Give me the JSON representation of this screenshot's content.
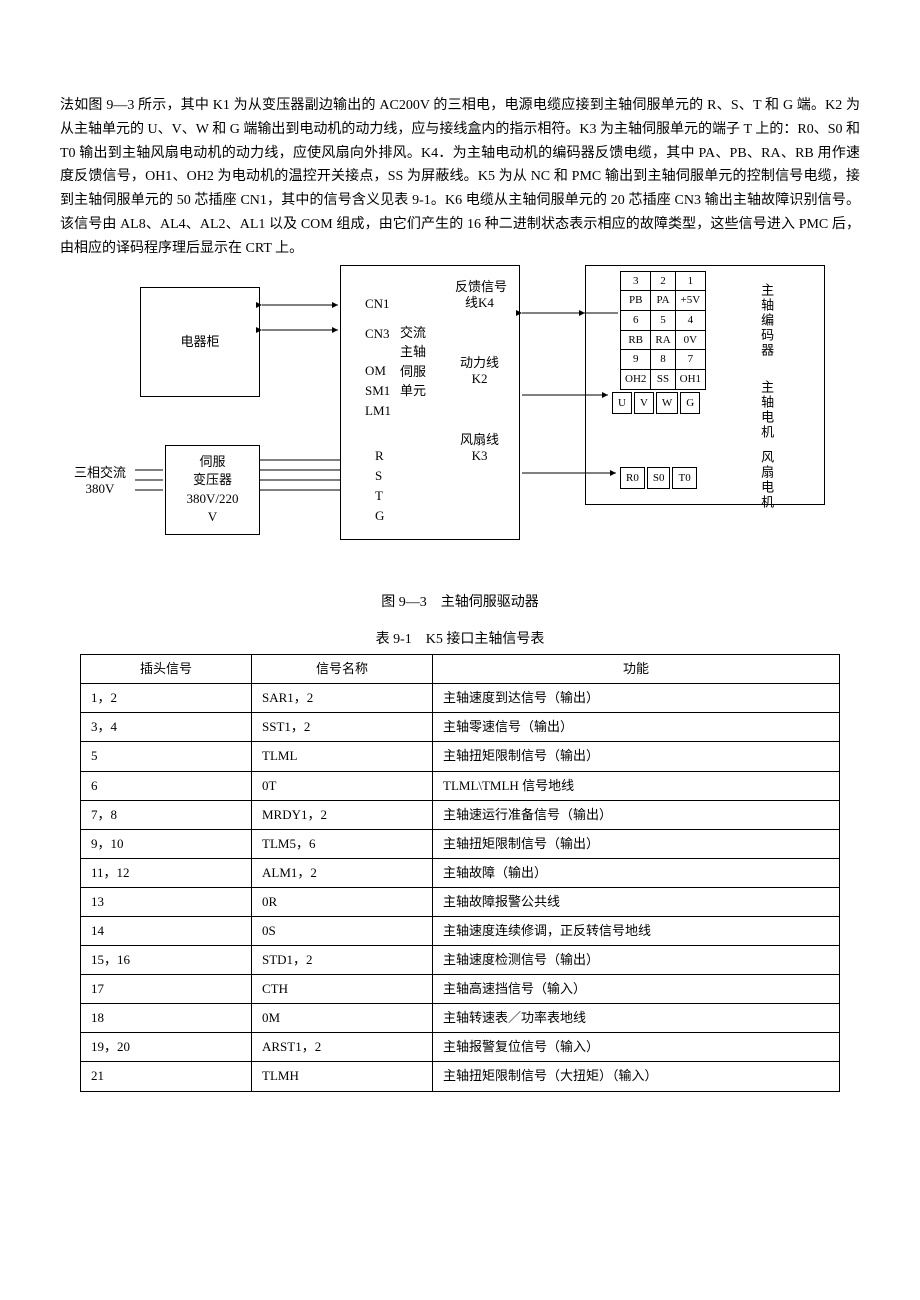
{
  "paragraph": "法如图 9—3 所示，其中 K1 为从变压器副边输出的 AC200V 的三相电，电源电缆应接到主轴伺服单元的 R、S、T 和 G 端。K2 为从主轴单元的 U、V、W 和 G 端输出到电动机的动力线，应与接线盒内的指示相符。K3 为主轴伺服单元的端子 T 上的：R0、S0 和 T0 输出到主轴风扇电动机的动力线，应使风扇向外排风。K4．为主轴电动机的编码器反馈电缆，其中 PA、PB、RA、RB 用作速度反馈信号，OH1、OH2 为电动机的温控开关接点，SS 为屏蔽线。K5 为从 NC 和 PMC 输出到主轴伺服单元的控制信号电缆，接到主轴伺服单元的 50 芯插座 CN1，其中的信号含义见表 9-1。K6 电缆从主轴伺服单元的 20 芯插座 CN3 输出主轴故障识别信号。该信号由 AL8、AL4、AL2、AL1 以及 COM 组成，由它们产生的 16 种二进制状态表示相应的故障类型，这些信号进入 PMC 后，由相应的译码程序理后显示在 CRT 上。",
  "figure_caption": "图 9—3　主轴伺服驱动器",
  "table_caption": "表 9-1　K5 接口主轴信号表",
  "diagram": {
    "cabinet": "电器柜",
    "three_phase_a": "三相交流",
    "three_phase_b": "380V",
    "transformer_a": "伺服",
    "transformer_b": "变压器",
    "transformer_c": "380V/220",
    "transformer_d": "V",
    "cn1": "CN1",
    "cn3": "CN3",
    "om": "OM",
    "sm1": "SM1",
    "lm1": "LM1",
    "rstg_r": "R",
    "rstg_s": "S",
    "rstg_t": "T",
    "rstg_g": "G",
    "servo_unit_a": "交流",
    "servo_unit_b": "主轴",
    "servo_unit_c": "伺服",
    "servo_unit_d": "单元",
    "feedback_a": "反馈信号",
    "feedback_b": "线K4",
    "power_line_a": "动力线",
    "power_line_b": "K2",
    "fan_line_a": "风扇线",
    "fan_line_b": "K3",
    "encoder_label": "主轴编码器",
    "motor_label": "主轴电机",
    "fan_motor_label": "风扇电机",
    "enc_r1": [
      "3",
      "2",
      "1"
    ],
    "enc_r2": [
      "PB",
      "PA",
      "+5V"
    ],
    "enc_r3": [
      "6",
      "5",
      "4"
    ],
    "enc_r4": [
      "RB",
      "RA",
      "0V"
    ],
    "enc_r5": [
      "9",
      "8",
      "7"
    ],
    "enc_r6": [
      "OH2",
      "SS",
      "OH1"
    ],
    "motor_pins": [
      "U",
      "V",
      "W",
      "G"
    ],
    "fan_pins": [
      "R0",
      "S0",
      "T0"
    ]
  },
  "table": {
    "headers": [
      "插头信号",
      "信号名称",
      "功能"
    ],
    "col_widths": [
      "150px",
      "160px",
      "auto"
    ],
    "rows": [
      [
        "1，2",
        "SAR1，2",
        "主轴速度到达信号（输出）"
      ],
      [
        "3，4",
        "SST1，2",
        "主轴零速信号（输出）"
      ],
      [
        "5",
        "TLML",
        "主轴扭矩限制信号（输出）"
      ],
      [
        "6",
        "0T",
        "TLML\\TMLH 信号地线"
      ],
      [
        "7，8",
        "MRDY1，2",
        "主轴速运行准备信号（输出）"
      ],
      [
        "9，10",
        "TLM5，6",
        "主轴扭矩限制信号（输出）"
      ],
      [
        "11，12",
        "ALM1，2",
        "主轴故障（输出）"
      ],
      [
        "13",
        "0R",
        "主轴故障报警公共线"
      ],
      [
        "14",
        "0S",
        "主轴速度连续修调，正反转信号地线"
      ],
      [
        "15，16",
        "STD1，2",
        "主轴速度检测信号（输出）"
      ],
      [
        "17",
        "CTH",
        "主轴高速挡信号（输入）"
      ],
      [
        "18",
        "0M",
        "主轴转速表／功率表地线"
      ],
      [
        "19，20",
        "ARST1，2",
        "主轴报警复位信号（输入）"
      ],
      [
        "21",
        "TLMH",
        "主轴扭矩限制信号（大扭矩）（输入）"
      ]
    ]
  }
}
